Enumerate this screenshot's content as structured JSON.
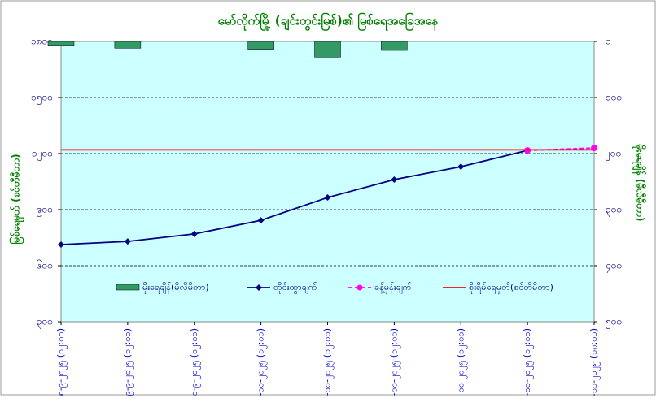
{
  "chart_data": {
    "type": "combo",
    "title": "မော်လိုက်မြို့ (ချင်းတွင်းမြစ်)၏ မြစ်ရေအခြေအနေ",
    "y_label": "မြစ်ရေမှတ် (စင်တီမီတာ)",
    "y2_label": "မိုးရေချိန် (မီလီမီတာ)",
    "categories": [
      "၂၈-၉-၂၀၂၅ (၁၂:၀၀)",
      "၂၉-၉-၂၀၂၅ (၁၂:၀၀)",
      "၃၀-၉-၂၀၂၅ (၁၂:၀၀)",
      "၁-၁၀-၂၀၂၅ (၁၂:၀၀)",
      "၂-၁၀-၂၀၂၅ (၁၂:၀၀)",
      "၃-၁၀-၂၀၂၅ (၁၂:၀၀)",
      "၄-၁၀-၂၀၂၅ (၁၂:၀၀)",
      "၅-၁၀-၂၀၂၅ (၁၂:၀၀)",
      "၅-၁၀-၂၀၂၅ (၁၈:၀၀)"
    ],
    "ylim": [
      300,
      1800
    ],
    "yticks": [
      {
        "value": 300,
        "label": "၃၀၀"
      },
      {
        "value": 600,
        "label": "၆၀၀"
      },
      {
        "value": 900,
        "label": "၉၀၀"
      },
      {
        "value": 1200,
        "label": "၁၂၀၀"
      },
      {
        "value": 1500,
        "label": "၁၅၀၀"
      },
      {
        "value": 1800,
        "label": "၁၈၀၀"
      }
    ],
    "y2lim": [
      500,
      0
    ],
    "y2ticks": [
      {
        "value": 0,
        "label": "၀"
      },
      {
        "value": 100,
        "label": "၁၀၀"
      },
      {
        "value": 200,
        "label": "၂၀၀"
      },
      {
        "value": 300,
        "label": "၃၀၀"
      },
      {
        "value": 400,
        "label": "၄၀၀"
      },
      {
        "value": 500,
        "label": "၅၀၀"
      }
    ],
    "grid": true,
    "series": [
      {
        "name": "မိုးရေချိန်(မီလီမီတာ)",
        "type": "bar",
        "axis": "y2",
        "color": "#339966",
        "values": [
          7,
          12,
          0,
          14,
          28,
          16,
          0,
          0,
          0
        ]
      },
      {
        "name": "တိုင်းထွာချက်",
        "type": "line",
        "color": "#000080",
        "values": [
          713,
          730,
          770,
          843,
          965,
          1061,
          1130,
          1217,
          null
        ]
      },
      {
        "name": "ခန့်မှန်းချက်",
        "type": "line",
        "dashed": true,
        "color": "#ff00ff",
        "values": [
          null,
          null,
          null,
          null,
          null,
          null,
          null,
          1217,
          1230
        ]
      },
      {
        "name": "စိုးရိမ်ရေမှတ်(စင်တီမီတာ)",
        "type": "hline",
        "color": "#ff0000",
        "value": 1220
      }
    ]
  }
}
